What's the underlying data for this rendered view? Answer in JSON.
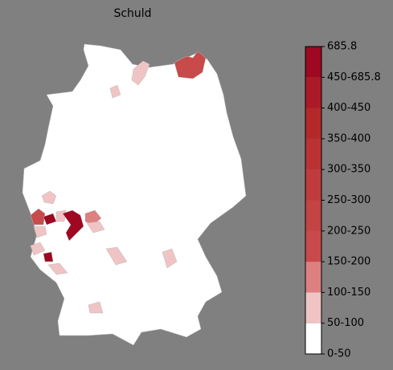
{
  "title": "Schuld",
  "colorbar": {
    "ticks": [
      "0-50",
      "50-100",
      "100-150",
      "150-200",
      "200-250",
      "250-300",
      "300-350",
      "350-400",
      "400-450",
      "450-685.8",
      "685.8"
    ],
    "colors": [
      "#ffffff",
      "#f0c4c4",
      "#dc8080",
      "#c84a4a",
      "#c44343",
      "#c03b3b",
      "#bb3232",
      "#b52828",
      "#ab1a26",
      "#9e0820"
    ]
  }
}
